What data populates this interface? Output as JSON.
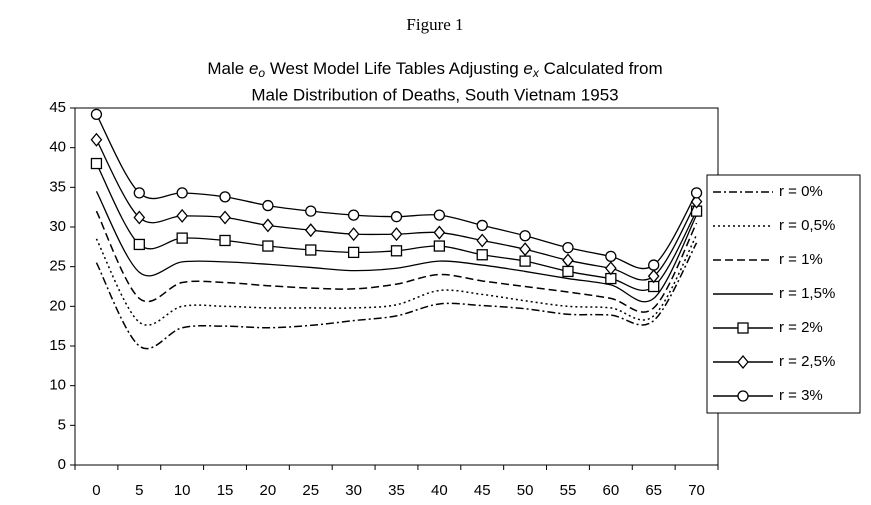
{
  "chart_data": {
    "type": "line",
    "figure_label": "Figure 1",
    "title": [
      "Male ",
      "e",
      "o",
      " West Model Life Tables Adjusting ",
      "e",
      "x",
      " Calculated from",
      "Male Distribution of Deaths, South Vietnam 1953"
    ],
    "categories": [
      0,
      5,
      10,
      15,
      20,
      25,
      30,
      35,
      40,
      45,
      50,
      55,
      60,
      65,
      70
    ],
    "ylim": [
      0,
      45
    ],
    "yticks": [
      0,
      5,
      10,
      15,
      20,
      25,
      30,
      35,
      40,
      45
    ],
    "grid": false,
    "legend": "right",
    "series": [
      {
        "name": "r = 0%",
        "color": "#000000",
        "dash": "dash-dot",
        "marker": "none",
        "values": [
          25.5,
          15,
          17.3,
          17.5,
          17.3,
          17.6,
          18.2,
          18.8,
          20.3,
          20.1,
          19.7,
          19.0,
          18.9,
          18.2,
          28
        ]
      },
      {
        "name": "r = 0,5%",
        "color": "#000000",
        "dash": "dotted",
        "marker": "none",
        "values": [
          28.5,
          18,
          20,
          20,
          19.8,
          19.8,
          19.8,
          20.2,
          22,
          21.5,
          20.7,
          20.0,
          19.8,
          18.8,
          29
        ]
      },
      {
        "name": "r = 1%",
        "color": "#000000",
        "dash": "dashed",
        "marker": "none",
        "values": [
          32,
          21,
          23,
          23,
          22.6,
          22.3,
          22.2,
          22.8,
          24.0,
          23.2,
          22.5,
          21.8,
          21.0,
          19.8,
          30.5
        ]
      },
      {
        "name": "r = 1,5%",
        "color": "#000000",
        "dash": "solid",
        "marker": "none",
        "values": [
          34.5,
          24.3,
          25.6,
          25.6,
          25.3,
          24.9,
          24.5,
          24.8,
          25.7,
          25.2,
          24.4,
          23.5,
          22.7,
          21.0,
          31.5
        ]
      },
      {
        "name": "r = 2%",
        "color": "#000000",
        "dash": "solid",
        "marker": "square",
        "values": [
          38,
          27.8,
          28.6,
          28.3,
          27.6,
          27.1,
          26.8,
          27.0,
          27.6,
          26.5,
          25.7,
          24.4,
          23.5,
          22.5,
          32.0
        ]
      },
      {
        "name": "r = 2,5%",
        "color": "#000000",
        "dash": "solid",
        "marker": "diamond",
        "values": [
          41,
          31.2,
          31.4,
          31.2,
          30.2,
          29.6,
          29.1,
          29.1,
          29.3,
          28.3,
          27.2,
          25.8,
          24.8,
          23.8,
          33.2
        ]
      },
      {
        "name": "r = 3%",
        "color": "#000000",
        "dash": "solid",
        "marker": "circle",
        "values": [
          44.2,
          34.3,
          34.3,
          33.8,
          32.7,
          32.0,
          31.5,
          31.3,
          31.5,
          30.2,
          28.9,
          27.4,
          26.3,
          25.2,
          34.3
        ]
      }
    ]
  }
}
